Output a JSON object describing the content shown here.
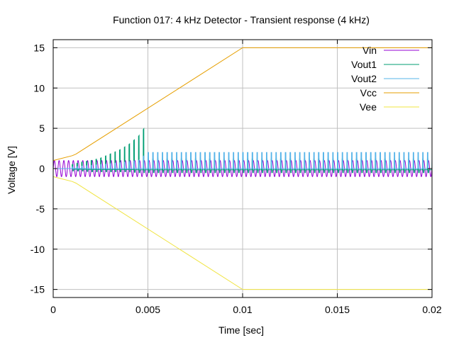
{
  "chart_data": {
    "type": "line",
    "title": "Function 017: 4 kHz Detector - Transient response (4 kHz)",
    "xlabel": "Time [sec]",
    "ylabel": "Voltage [V]",
    "xlim": [
      0,
      0.02
    ],
    "ylim": [
      -16,
      16
    ],
    "x_ticks": [
      0,
      0.005,
      0.01,
      0.015,
      0.02
    ],
    "x_tick_labels": [
      "0",
      "0.005",
      "0.01",
      "0.015",
      "0.02"
    ],
    "y_ticks": [
      -15,
      -10,
      -5,
      0,
      5,
      10,
      15
    ],
    "y_tick_labels": [
      "-15",
      "-10",
      "-5",
      "0",
      "5",
      "10",
      "15"
    ],
    "grid": true,
    "legend_position": "top-right",
    "series": [
      {
        "name": "Vin",
        "color": "#9400d3",
        "shape": "sine",
        "frequency_hz": 4000,
        "amplitude": 1,
        "offset": 0
      },
      {
        "name": "Vout1",
        "color": "#009e73",
        "shape": "pulses",
        "frequency_hz": 4000,
        "description_points": {
          "x": [
            0.001,
            0.0015,
            0.002,
            0.0025,
            0.003,
            0.0035,
            0.004,
            0.0045,
            0.0048,
            0.005,
            0.01,
            0.02
          ],
          "peak": [
            0.5,
            0.8,
            1.0,
            1.3,
            1.8,
            2.3,
            3.0,
            4.0,
            5.0,
            1.2,
            1.2,
            1.2
          ],
          "trough": [
            -0.3,
            -0.3,
            -0.4,
            -0.4,
            -0.4,
            -0.4,
            -0.4,
            -0.5,
            -0.5,
            -0.5,
            -0.5,
            -0.5
          ]
        }
      },
      {
        "name": "Vout2",
        "color": "#56b4e9",
        "shape": "pulses",
        "frequency_hz": 4000,
        "description_points": {
          "x": [
            0.001,
            0.003,
            0.0045,
            0.005,
            0.01,
            0.02
          ],
          "peak": [
            0.2,
            0.6,
            1.0,
            2.0,
            2.0,
            2.0
          ],
          "trough": [
            0.0,
            0.0,
            0.0,
            0.0,
            0.0,
            0.0
          ]
        }
      },
      {
        "name": "Vcc",
        "color": "#e69f00",
        "shape": "piecewise",
        "x": [
          0,
          0.001,
          0.0012,
          0.01,
          0.02
        ],
        "y": [
          1.0,
          1.6,
          1.8,
          15.0,
          15.0
        ]
      },
      {
        "name": "Vee",
        "color": "#f0e442",
        "shape": "piecewise",
        "x": [
          0,
          0.001,
          0.0012,
          0.01,
          0.02
        ],
        "y": [
          -1.0,
          -1.6,
          -1.8,
          -15.0,
          -15.0
        ]
      }
    ]
  }
}
